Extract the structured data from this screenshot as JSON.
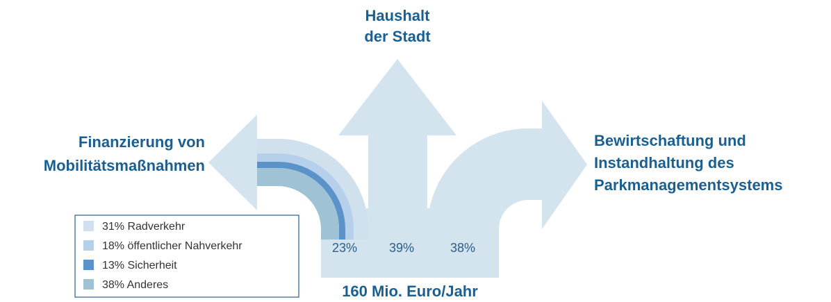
{
  "labels": {
    "top": [
      "Haushalt",
      "der Stadt"
    ],
    "left": [
      "Finanzierung von",
      "Mobilitätsmaßnahmen"
    ],
    "right": [
      "Bewirtschaftung und",
      "Instandhaltung des",
      "Parkmanagementsystems"
    ],
    "bottom": "160 Mio. Euro/Jahr"
  },
  "shares": [
    "23%",
    "39%",
    "38%"
  ],
  "legend": [
    "31% Radverkehr",
    "18% öffentlicher Nahverkehr",
    "13% Sicherheit",
    "38% Anderes"
  ]
}
